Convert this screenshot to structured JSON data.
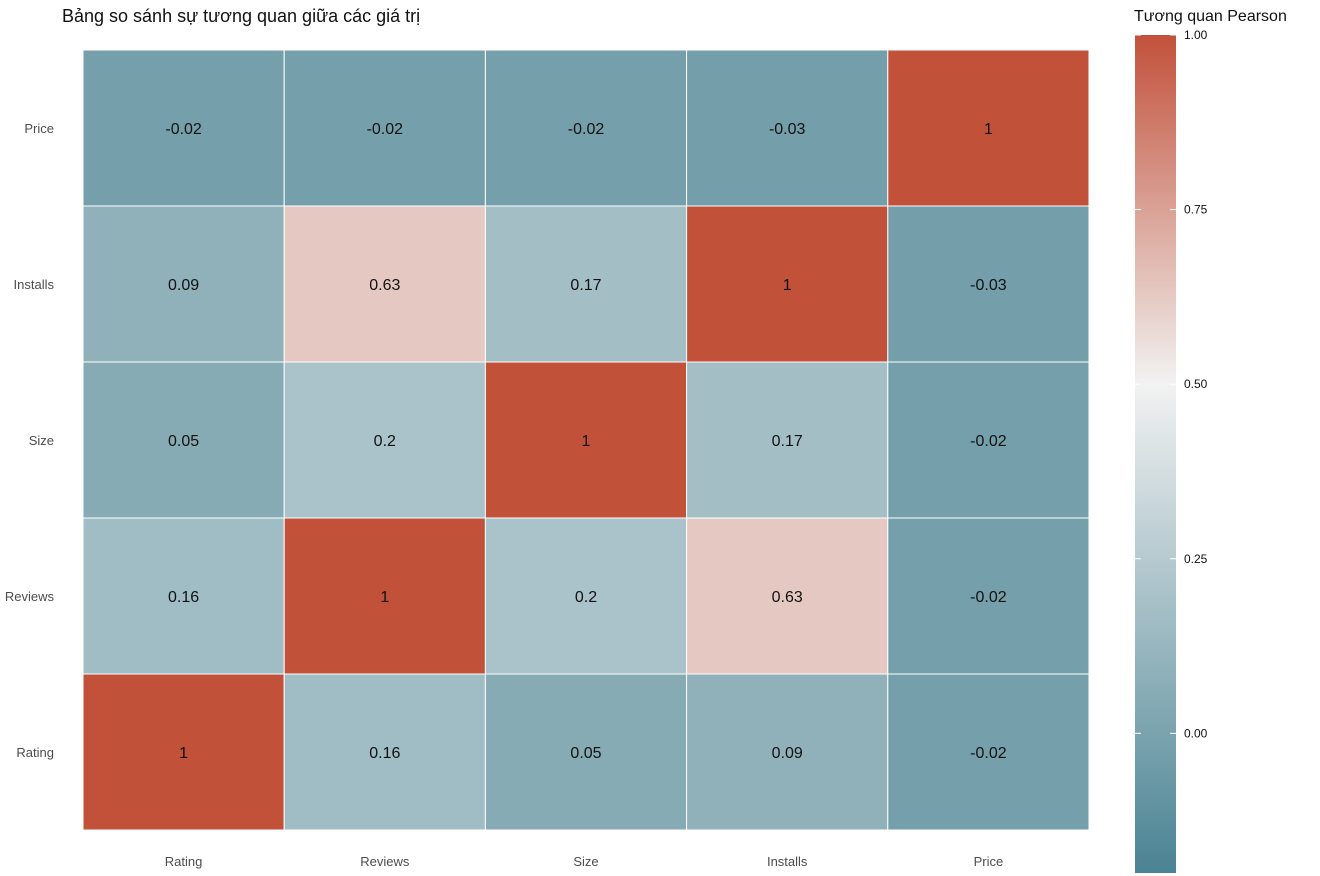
{
  "chart_data": {
    "type": "heatmap",
    "title": "Bảng so sánh sự tương quan giữa các giá trị",
    "x_categories": [
      "Rating",
      "Reviews",
      "Size",
      "Installs",
      "Price"
    ],
    "y_categories": [
      "Price",
      "Installs",
      "Size",
      "Reviews",
      "Rating"
    ],
    "values": [
      [
        -0.02,
        -0.02,
        -0.02,
        -0.03,
        1
      ],
      [
        0.09,
        0.63,
        0.17,
        1,
        -0.03
      ],
      [
        0.05,
        0.2,
        1,
        0.17,
        -0.02
      ],
      [
        0.16,
        1,
        0.2,
        0.63,
        -0.02
      ],
      [
        1,
        0.16,
        0.05,
        0.09,
        -0.02
      ]
    ],
    "labels": [
      [
        "-0.02",
        "-0.02",
        "-0.02",
        "-0.03",
        "1"
      ],
      [
        "0.09",
        "0.63",
        "0.17",
        "1",
        "-0.03"
      ],
      [
        "0.05",
        "0.2",
        "1",
        "0.17",
        "-0.02"
      ],
      [
        "0.16",
        "1",
        "0.2",
        "0.63",
        "-0.02"
      ],
      [
        "1",
        "0.16",
        "0.05",
        "0.09",
        "-0.02"
      ]
    ],
    "legend": {
      "title": "Tương quan Pearson",
      "range": [
        -0.2,
        1.0
      ],
      "ticks": [
        1.0,
        0.75,
        0.5,
        0.25,
        0.0
      ],
      "tick_labels": [
        "1.00",
        "0.75",
        "0.50",
        "0.25",
        "0.00"
      ],
      "placement": "right"
    },
    "colors": {
      "low": "#4a8393",
      "mid": "#f2f2f2",
      "high": "#c2513a",
      "midpoint": 0.5
    },
    "grid": false
  }
}
